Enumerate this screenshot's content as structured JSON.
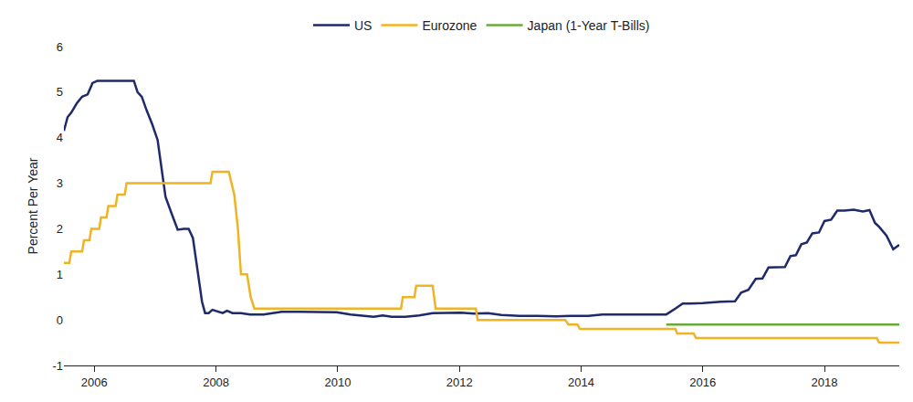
{
  "chart_data": {
    "type": "line",
    "y_label": "Percent Per Year",
    "xlim": [
      2005.5,
      2019.23
    ],
    "xticks": [
      2006,
      2008,
      2010,
      2012,
      2014,
      2016,
      2018
    ],
    "ylim": [
      -1,
      6
    ],
    "yticks": [
      -1,
      0,
      1,
      2,
      3,
      4,
      5,
      6
    ],
    "grid": false,
    "legend": "top",
    "series": [
      {
        "name": "US",
        "color": "#1f2a6b",
        "line_style": "solid",
        "x": [
          2005.5,
          2005.56,
          2005.62,
          2005.71,
          2005.8,
          2005.89,
          2005.97,
          2006.05,
          2006.3,
          2006.53,
          2006.65,
          2006.71,
          2006.78,
          2006.86,
          2006.95,
          2007.04,
          2007.11,
          2007.17,
          2007.28,
          2007.37,
          2007.47,
          2007.55,
          2007.62,
          2007.71,
          2007.77,
          2007.82,
          2007.88,
          2007.94,
          2008.03,
          2008.11,
          2008.18,
          2008.27,
          2008.41,
          2008.56,
          2008.78,
          2008.93,
          2009.08,
          2009.38,
          2009.68,
          2009.98,
          2010.21,
          2010.44,
          2010.59,
          2010.74,
          2010.89,
          2011.11,
          2011.34,
          2011.56,
          2011.79,
          2012.02,
          2012.24,
          2012.47,
          2012.69,
          2012.99,
          2013.29,
          2013.59,
          2013.82,
          2014.12,
          2014.35,
          2014.65,
          2014.95,
          2015.17,
          2015.4,
          2015.55,
          2015.67,
          2015.77,
          2016.0,
          2016.3,
          2016.53,
          2016.63,
          2016.75,
          2016.87,
          2016.98,
          2017.08,
          2017.35,
          2017.44,
          2017.53,
          2017.62,
          2017.71,
          2017.8,
          2017.91,
          2018.0,
          2018.11,
          2018.21,
          2018.33,
          2018.48,
          2018.63,
          2018.74,
          2018.83,
          2018.9,
          2019.02,
          2019.13,
          2019.23
        ],
        "values": [
          4.15,
          4.45,
          4.55,
          4.75,
          4.9,
          4.95,
          5.2,
          5.25,
          5.25,
          5.25,
          5.25,
          5.0,
          4.9,
          4.6,
          4.3,
          3.95,
          3.3,
          2.7,
          2.3,
          1.98,
          2.0,
          2.0,
          1.8,
          0.95,
          0.4,
          0.15,
          0.15,
          0.22,
          0.18,
          0.15,
          0.2,
          0.15,
          0.15,
          0.12,
          0.12,
          0.15,
          0.18,
          0.18,
          0.18,
          0.17,
          0.12,
          0.09,
          0.07,
          0.1,
          0.07,
          0.07,
          0.1,
          0.15,
          0.15,
          0.16,
          0.14,
          0.15,
          0.11,
          0.09,
          0.09,
          0.08,
          0.09,
          0.09,
          0.12,
          0.12,
          0.13,
          0.13,
          0.12,
          0.25,
          0.36,
          0.36,
          0.37,
          0.4,
          0.41,
          0.6,
          0.66,
          0.9,
          0.91,
          1.15,
          1.16,
          1.4,
          1.42,
          1.66,
          1.7,
          1.9,
          1.92,
          2.17,
          2.2,
          2.4,
          2.4,
          2.42,
          2.38,
          2.41,
          2.13,
          2.04,
          1.85,
          1.55,
          1.65
        ]
      },
      {
        "name": "Eurozone",
        "color": "#f0b323",
        "line_style": "solid",
        "x": [
          2005.5,
          2005.59,
          2005.62,
          2005.8,
          2005.83,
          2005.92,
          2005.95,
          2006.08,
          2006.11,
          2006.2,
          2006.23,
          2006.35,
          2006.38,
          2006.5,
          2006.53,
          2007.91,
          2007.94,
          2008.21,
          2008.3,
          2008.36,
          2008.41,
          2008.51,
          2008.57,
          2008.63,
          2011.04,
          2011.07,
          2011.26,
          2011.29,
          2011.56,
          2011.61,
          2012.27,
          2012.3,
          2013.74,
          2013.79,
          2013.94,
          2013.98,
          2015.55,
          2015.58,
          2015.85,
          2015.89,
          2018.86,
          2018.9,
          2019.23
        ],
        "values": [
          1.25,
          1.25,
          1.5,
          1.5,
          1.75,
          1.75,
          2.0,
          2.0,
          2.25,
          2.25,
          2.5,
          2.5,
          2.75,
          2.75,
          3.0,
          3.0,
          3.25,
          3.25,
          2.75,
          2.0,
          1.0,
          1.0,
          0.5,
          0.25,
          0.25,
          0.5,
          0.5,
          0.75,
          0.75,
          0.25,
          0.25,
          0.0,
          0.0,
          -0.1,
          -0.1,
          -0.2,
          -0.2,
          -0.3,
          -0.3,
          -0.4,
          -0.4,
          -0.5,
          -0.5
        ]
      },
      {
        "name": "Japan (1-Year T-Bills)",
        "color": "#6aaa3a",
        "line_style": "solid",
        "x": [
          2015.4,
          2019.23
        ],
        "values": [
          -0.1,
          -0.1
        ]
      }
    ]
  }
}
